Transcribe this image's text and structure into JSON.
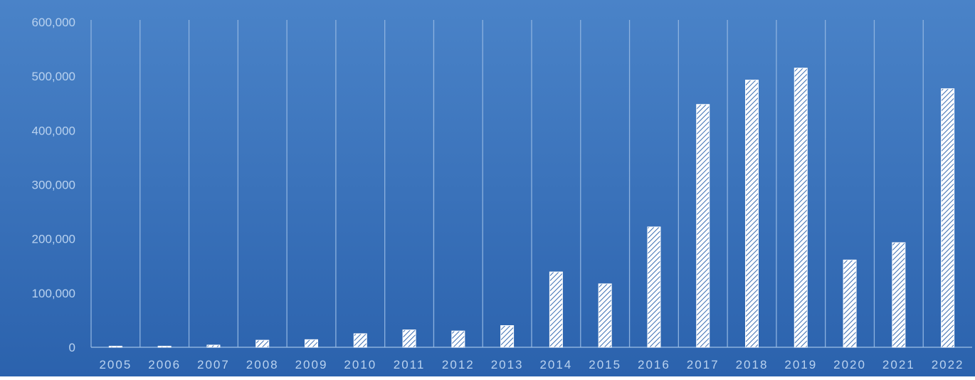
{
  "chart_data": {
    "type": "bar",
    "title": "",
    "xlabel": "",
    "ylabel": "",
    "categories": [
      "2005",
      "2006",
      "2007",
      "2008",
      "2009",
      "2010",
      "2011",
      "2012",
      "2013",
      "2014",
      "2015",
      "2016",
      "2017",
      "2018",
      "2019",
      "2020",
      "2021",
      "2022"
    ],
    "values": [
      2000,
      2000,
      4000,
      13000,
      14000,
      25000,
      32000,
      30000,
      40000,
      139000,
      117000,
      222000,
      448000,
      493000,
      515000,
      161000,
      193000,
      477000
    ],
    "ylim": [
      0,
      600000
    ],
    "yticks": [
      0,
      100000,
      200000,
      300000,
      400000,
      500000,
      600000
    ],
    "ytick_labels": [
      "0",
      "100,000",
      "200,000",
      "300,000",
      "400,000",
      "500,000",
      "600,000"
    ],
    "grid": "vertical",
    "legend": "none",
    "colors": {
      "background_top": "#4a83c8",
      "background_bottom": "#2b62ad",
      "bar_fill": "#ffffff",
      "bar_hatch": "#3a6db3",
      "grid_line": "#8db2df",
      "axis_line": "#9ec0e6",
      "tick_label": "#b9d2ef"
    }
  }
}
